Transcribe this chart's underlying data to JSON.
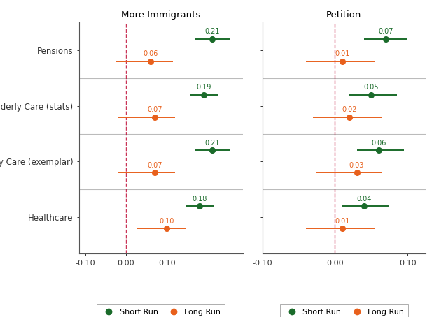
{
  "categories": [
    "Pensions",
    "Elderly Care (stats)",
    "Elderly Care (exemplar)",
    "Healthcare"
  ],
  "panel1_title": "More Immigrants",
  "panel2_title": "Petition",
  "short_run_color": "#1a6b2a",
  "long_run_color": "#e8601c",
  "dashed_line_color": "#c0103a",
  "panel1": {
    "short_run": {
      "values": [
        0.21,
        0.19,
        0.21,
        0.18
      ],
      "ci_lower": [
        0.17,
        0.155,
        0.17,
        0.145
      ],
      "ci_upper": [
        0.255,
        0.225,
        0.255,
        0.215
      ]
    },
    "long_run": {
      "values": [
        0.06,
        0.07,
        0.07,
        0.1
      ],
      "ci_lower": [
        -0.025,
        -0.02,
        -0.02,
        0.025
      ],
      "ci_upper": [
        0.115,
        0.12,
        0.12,
        0.145
      ]
    }
  },
  "panel2": {
    "short_run": {
      "values": [
        0.07,
        0.05,
        0.06,
        0.04
      ],
      "ci_lower": [
        0.04,
        0.02,
        0.03,
        0.01
      ],
      "ci_upper": [
        0.1,
        0.085,
        0.095,
        0.075
      ]
    },
    "long_run": {
      "values": [
        0.01,
        0.02,
        0.03,
        0.01
      ],
      "ci_lower": [
        -0.04,
        -0.03,
        -0.025,
        -0.04
      ],
      "ci_upper": [
        0.055,
        0.065,
        0.065,
        0.055
      ]
    }
  },
  "separator_color": "#bbbbbb",
  "figsize": [
    6.27,
    4.54
  ],
  "dpi": 100
}
